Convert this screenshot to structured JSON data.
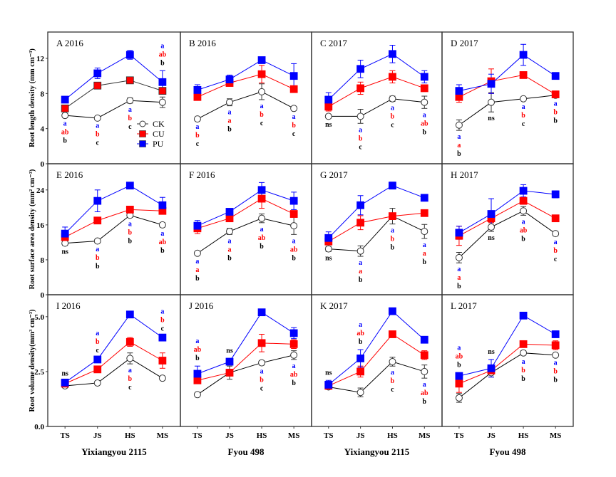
{
  "chart_data": {
    "type": "line",
    "layout": "3 rows x 4 columns of panels",
    "x_categories": [
      "TS",
      "JS",
      "HS",
      "MS"
    ],
    "column_xlabels": [
      "Yixiangyou 2115",
      "Fyou 498",
      "Yixiangyou 2115",
      "Fyou 498"
    ],
    "legend": {
      "placement": "inside panel A, lower-right",
      "entries": [
        {
          "name": "CK",
          "marker": "open-circle",
          "color": "#000000"
        },
        {
          "name": "CU",
          "marker": "filled-square",
          "color": "#ff0000"
        },
        {
          "name": "PU",
          "marker": "filled-square",
          "color": "#0000ff"
        }
      ]
    },
    "series_colors": {
      "CK": "#000000",
      "CU": "#ff0000",
      "PU": "#0000ff"
    },
    "rows": [
      {
        "ylabel": "Root length density (mm cm⁻³)",
        "ylim": [
          0,
          15
        ],
        "yticks": [
          "0",
          "4",
          "8",
          "12"
        ],
        "ytick_values": [
          0,
          4,
          8,
          12
        ]
      },
      {
        "ylabel": "Root surface area density (mm² cm⁻³)",
        "ylim": [
          0,
          30
        ],
        "yticks": [
          "0",
          "8",
          "16",
          "24"
        ],
        "ytick_values": [
          0,
          8,
          16,
          24
        ]
      },
      {
        "ylabel": "Root volume density(mm³ cm⁻³)",
        "ylim": [
          0,
          6
        ],
        "yticks": [
          "0.0",
          "2.5",
          "5.0"
        ],
        "ytick_values": [
          0,
          2.5,
          5.0
        ]
      }
    ],
    "panels": [
      {
        "id": "A",
        "title": "A 2016",
        "row": 0,
        "col": 0,
        "series": [
          {
            "name": "CK",
            "values": [
              5.5,
              5.2,
              7.2,
              7.0
            ],
            "err": [
              0.2,
              0.15,
              0.3,
              0.6
            ]
          },
          {
            "name": "CU",
            "values": [
              6.3,
              8.9,
              9.5,
              8.3
            ],
            "err": [
              0.2,
              0.2,
              0.2,
              0.3
            ]
          },
          {
            "name": "PU",
            "values": [
              7.3,
              10.3,
              12.4,
              9.3
            ],
            "err": [
              0.2,
              0.6,
              0.5,
              1.3
            ]
          }
        ],
        "sig": [
          [
            "a",
            "ab",
            "b"
          ],
          [
            "a",
            "b",
            "c"
          ],
          [
            "a",
            "b",
            "c"
          ],
          [
            "a",
            "ab",
            "b"
          ]
        ],
        "sig_pos": [
          "below",
          "below",
          "below",
          "above"
        ]
      },
      {
        "id": "B",
        "title": "B 2016",
        "row": 0,
        "col": 1,
        "series": [
          {
            "name": "CK",
            "values": [
              5.1,
              7.0,
              8.2,
              6.3
            ],
            "err": [
              0.15,
              0.4,
              0.9,
              0.2
            ]
          },
          {
            "name": "CU",
            "values": [
              7.6,
              9.2,
              10.2,
              8.5
            ],
            "err": [
              0.2,
              0.2,
              1.0,
              0.2
            ]
          },
          {
            "name": "PU",
            "values": [
              8.4,
              9.6,
              11.8,
              10.0
            ],
            "err": [
              0.6,
              0.5,
              0.2,
              1.4
            ]
          }
        ],
        "sig": [
          [
            "a",
            "b",
            "c"
          ],
          [
            "a",
            "a",
            "b"
          ],
          [
            "a",
            "b",
            "c"
          ],
          [
            "a",
            "b",
            "c"
          ]
        ],
        "sig_pos": [
          "below",
          "below",
          "below",
          "below"
        ]
      },
      {
        "id": "C",
        "title": "C 2017",
        "row": 0,
        "col": 2,
        "series": [
          {
            "name": "CK",
            "values": [
              5.4,
              5.4,
              7.4,
              7.0
            ],
            "err": [
              0.2,
              0.8,
              0.3,
              0.7
            ]
          },
          {
            "name": "CU",
            "values": [
              6.5,
              8.6,
              9.9,
              8.6
            ],
            "err": [
              0.5,
              0.7,
              0.7,
              0.3
            ]
          },
          {
            "name": "PU",
            "values": [
              7.3,
              10.8,
              12.5,
              9.9
            ],
            "err": [
              0.8,
              1.0,
              1.0,
              0.7
            ]
          }
        ],
        "sig": [
          [
            "ns"
          ],
          [
            "a",
            "b",
            "c"
          ],
          [
            "a",
            "b",
            "c"
          ],
          [
            "a",
            "ab",
            "b"
          ]
        ],
        "sig_pos": [
          "below",
          "below",
          "below",
          "below"
        ]
      },
      {
        "id": "D",
        "title": "D 2017",
        "row": 0,
        "col": 3,
        "series": [
          {
            "name": "CK",
            "values": [
              4.4,
              7.0,
              7.4,
              7.8
            ],
            "err": [
              0.6,
              1.1,
              0.2,
              0.2
            ]
          },
          {
            "name": "CU",
            "values": [
              7.6,
              9.4,
              10.1,
              7.9
            ],
            "err": [
              0.6,
              1.4,
              0.3,
              0.3
            ]
          },
          {
            "name": "PU",
            "values": [
              8.3,
              9.1,
              12.4,
              10.0
            ],
            "err": [
              0.7,
              1.1,
              1.2,
              0.3
            ]
          }
        ],
        "sig": [
          [
            "a",
            "a",
            "b"
          ],
          [
            "ns"
          ],
          [
            "a",
            "b",
            "c"
          ],
          [
            "a",
            "b",
            "b"
          ]
        ],
        "sig_pos": [
          "below",
          "below",
          "below",
          "below"
        ]
      },
      {
        "id": "E",
        "title": "E 2016",
        "row": 1,
        "col": 0,
        "series": [
          {
            "name": "CK",
            "values": [
              11.8,
              12.3,
              18.2,
              16.0
            ],
            "err": [
              0.5,
              0.4,
              0.5,
              0.5
            ]
          },
          {
            "name": "CU",
            "values": [
              13.2,
              17.0,
              19.5,
              19.2
            ],
            "err": [
              1.0,
              0.4,
              0.4,
              0.6
            ]
          },
          {
            "name": "PU",
            "values": [
              14.0,
              21.5,
              25.0,
              20.5
            ],
            "err": [
              1.5,
              2.5,
              0.3,
              1.8
            ]
          }
        ],
        "sig": [
          [
            "ns"
          ],
          [
            "a",
            "b",
            "b"
          ],
          [
            "a",
            "b",
            "b"
          ],
          [
            "a",
            "ab",
            "b"
          ]
        ],
        "sig_pos": [
          "below",
          "below",
          "below",
          "below"
        ]
      },
      {
        "id": "F",
        "title": "F 2016",
        "row": 1,
        "col": 1,
        "series": [
          {
            "name": "CK",
            "values": [
              9.5,
              14.5,
              17.5,
              15.8
            ],
            "err": [
              0.4,
              0.7,
              1.0,
              2.0
            ]
          },
          {
            "name": "CU",
            "values": [
              15.2,
              17.5,
              22.0,
              18.5
            ],
            "err": [
              1.2,
              0.4,
              2.2,
              0.6
            ]
          },
          {
            "name": "PU",
            "values": [
              15.8,
              19.0,
              24.0,
              21.5
            ],
            "err": [
              1.2,
              0.6,
              1.7,
              2.0
            ]
          }
        ],
        "sig": [
          [
            "a",
            "a",
            "b"
          ],
          [
            "a",
            "a",
            "b"
          ],
          [
            "a",
            "ab",
            "b"
          ],
          [
            "a",
            "ab",
            "b"
          ]
        ],
        "sig_pos": [
          "below",
          "below",
          "below",
          "below"
        ]
      },
      {
        "id": "G",
        "title": "G 2017",
        "row": 1,
        "col": 2,
        "series": [
          {
            "name": "CK",
            "values": [
              10.5,
              10.0,
              18.0,
              14.5
            ],
            "err": [
              0.6,
              1.2,
              1.8,
              1.6
            ]
          },
          {
            "name": "CU",
            "values": [
              12.2,
              16.5,
              18.0,
              18.7
            ],
            "err": [
              1.3,
              1.6,
              0.5,
              0.7
            ]
          },
          {
            "name": "PU",
            "values": [
              13.0,
              20.5,
              25.0,
              22.2
            ],
            "err": [
              1.4,
              2.2,
              0.8,
              0.7
            ]
          }
        ],
        "sig": [
          [
            "ns"
          ],
          [
            "a",
            "a",
            "b"
          ],
          [
            "a",
            "b",
            "b"
          ],
          [
            "a",
            "a",
            "b"
          ]
        ],
        "sig_pos": [
          "below",
          "below",
          "below",
          "below"
        ]
      },
      {
        "id": "H",
        "title": "H 2017",
        "row": 1,
        "col": 3,
        "series": [
          {
            "name": "CK",
            "values": [
              8.5,
              15.5,
              19.2,
              14.0
            ],
            "err": [
              1.2,
              1.0,
              1.0,
              0.5
            ]
          },
          {
            "name": "CU",
            "values": [
              13.5,
              17.5,
              21.5,
              17.5
            ],
            "err": [
              2.2,
              1.0,
              0.5,
              0.3
            ]
          },
          {
            "name": "PU",
            "values": [
              14.2,
              18.5,
              23.8,
              23.0
            ],
            "err": [
              1.5,
              3.5,
              1.4,
              0.8
            ]
          }
        ],
        "sig": [
          [
            "a",
            "a",
            "b"
          ],
          [
            "ns"
          ],
          [
            "a",
            "ab",
            "b"
          ],
          [
            "a",
            "b",
            "c"
          ]
        ],
        "sig_pos": [
          "below",
          "below",
          "below",
          "below"
        ]
      },
      {
        "id": "I",
        "title": "I 2016",
        "row": 2,
        "col": 0,
        "series": [
          {
            "name": "CK",
            "values": [
              1.85,
              1.98,
              3.1,
              2.2
            ],
            "err": [
              0.04,
              0.04,
              0.25,
              0.05
            ]
          },
          {
            "name": "CU",
            "values": [
              1.95,
              2.6,
              3.85,
              3.0
            ],
            "err": [
              0.05,
              0.08,
              0.2,
              0.35
            ]
          },
          {
            "name": "PU",
            "values": [
              2.0,
              3.05,
              5.1,
              4.05
            ],
            "err": [
              0.06,
              0.07,
              0.12,
              0.06
            ]
          }
        ],
        "sig": [
          [
            "ns"
          ],
          [
            "a",
            "b",
            "c"
          ],
          [
            "a",
            "b",
            "c"
          ],
          [
            "a",
            "b",
            "c"
          ]
        ],
        "sig_pos": [
          "above",
          "above",
          "below",
          "above"
        ]
      },
      {
        "id": "J",
        "title": "J 2016",
        "row": 2,
        "col": 1,
        "series": [
          {
            "name": "CK",
            "values": [
              1.45,
              2.45,
              2.9,
              3.25
            ],
            "err": [
              0.04,
              0.3,
              0.1,
              0.2
            ]
          },
          {
            "name": "CU",
            "values": [
              2.1,
              2.45,
              3.8,
              3.75
            ],
            "err": [
              0.1,
              0.15,
              0.4,
              0.2
            ]
          },
          {
            "name": "PU",
            "values": [
              2.4,
              2.95,
              5.2,
              4.25
            ],
            "err": [
              0.35,
              0.15,
              0.1,
              0.25
            ]
          }
        ],
        "sig": [
          [
            "a",
            "ab",
            "b"
          ],
          [
            "ns"
          ],
          [
            "a",
            "b",
            "c"
          ],
          [
            "a",
            "ab",
            "b"
          ]
        ],
        "sig_pos": [
          "above",
          "above",
          "below",
          "below"
        ]
      },
      {
        "id": "K",
        "title": "K 2017",
        "row": 2,
        "col": 2,
        "series": [
          {
            "name": "CK",
            "values": [
              1.8,
              1.55,
              2.95,
              2.5
            ],
            "err": [
              0.05,
              0.2,
              0.2,
              0.3
            ]
          },
          {
            "name": "CU",
            "values": [
              1.85,
              2.5,
              4.2,
              3.25
            ],
            "err": [
              0.1,
              0.25,
              0.05,
              0.2
            ]
          },
          {
            "name": "PU",
            "values": [
              1.9,
              3.1,
              5.25,
              3.95
            ],
            "err": [
              0.2,
              0.4,
              0.05,
              0.05
            ]
          }
        ],
        "sig": [
          [
            "ns"
          ],
          [
            "a",
            "ab",
            "b"
          ],
          [
            "a",
            "b",
            "c"
          ],
          [
            "a",
            "ab",
            "b"
          ]
        ],
        "sig_pos": [
          "above",
          "above",
          "below",
          "below"
        ]
      },
      {
        "id": "L",
        "title": "L 2017",
        "row": 2,
        "col": 3,
        "series": [
          {
            "name": "CK",
            "values": [
              1.3,
              2.45,
              3.35,
              3.25
            ],
            "err": [
              0.2,
              0.2,
              0.1,
              0.05
            ]
          },
          {
            "name": "CU",
            "values": [
              1.95,
              2.55,
              3.75,
              3.7
            ],
            "err": [
              0.4,
              0.15,
              0.05,
              0.2
            ]
          },
          {
            "name": "PU",
            "values": [
              2.3,
              2.65,
              5.05,
              4.2
            ],
            "err": [
              0.15,
              0.4,
              0.12,
              0.12
            ]
          }
        ],
        "sig": [
          [
            "a",
            "ab",
            "b"
          ],
          [
            "ns"
          ],
          [
            "a",
            "b",
            "b"
          ],
          [
            "a",
            "b",
            "b"
          ]
        ],
        "sig_pos": [
          "above",
          "above",
          "below",
          "below"
        ]
      }
    ]
  }
}
